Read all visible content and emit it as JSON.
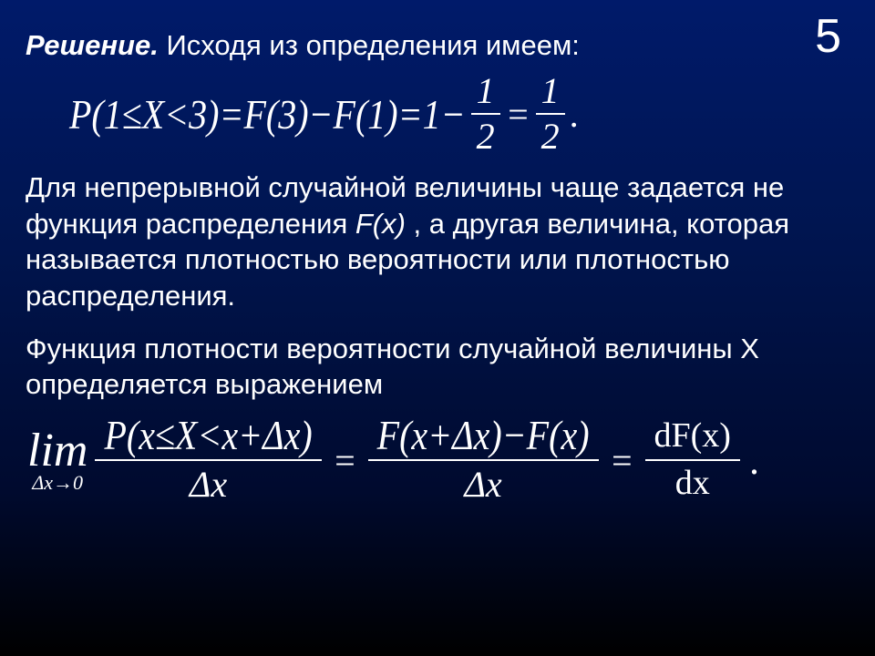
{
  "page_number": "5",
  "line1_bold": "Решение.",
  "line1_rest": "  Исходя из определения имеем:",
  "formula1": {
    "lhs": "P(1≤X<3)=F(3)−F(1)=1−",
    "frac1_num": "1",
    "frac1_den": "2",
    "mid": "=",
    "frac2_num": "1",
    "frac2_den": "2",
    "tail": "."
  },
  "para1_a": "  Для непрерывной случайной величины чаще задается не функция распределения ",
  "para1_fx": "F(x)",
  "para1_b": " , а другая величина, которая называется плотностью вероятности или плотностью распределения.",
  "para2": "    Функция плотности вероятности случайной величины  X   определяется выражением",
  "formula2": {
    "lim": "lim",
    "lim_sub": "Δx→0",
    "frac1_num": "P(x≤X<x+Δx)",
    "frac1_den": "Δx",
    "eq1": "=",
    "frac2_num": "F(x+Δx)−F(x)",
    "frac2_den": "Δx",
    "eq2": "=",
    "frac3_num": "dF(x)",
    "frac3_den": "dx",
    "tail": "."
  },
  "colors": {
    "text": "#ffffff",
    "bg_top": "#001a6a",
    "bg_bottom": "#000000"
  },
  "font_sizes": {
    "body_text_pt": 31,
    "page_number_pt": 52,
    "formula_main_pt": 40,
    "lim_pt": 52,
    "lim_sub_pt": 22
  }
}
